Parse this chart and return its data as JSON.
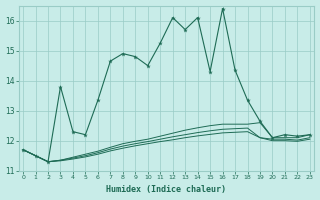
{
  "xlabel": "Humidex (Indice chaleur)",
  "x_values": [
    0,
    1,
    2,
    3,
    4,
    5,
    6,
    7,
    8,
    9,
    10,
    11,
    12,
    13,
    14,
    15,
    16,
    17,
    18,
    19,
    20,
    21,
    22,
    23
  ],
  "line1": [
    11.7,
    11.5,
    11.3,
    13.8,
    12.3,
    12.2,
    13.35,
    14.65,
    14.9,
    14.8,
    14.5,
    15.25,
    16.1,
    15.7,
    16.1,
    14.3,
    16.4,
    14.35,
    13.35,
    12.65,
    12.1,
    12.2,
    12.15,
    12.2
  ],
  "line2": [
    11.7,
    11.5,
    11.3,
    11.35,
    11.45,
    11.55,
    11.65,
    11.78,
    11.9,
    11.98,
    12.05,
    12.15,
    12.25,
    12.35,
    12.43,
    12.5,
    12.55,
    12.55,
    12.55,
    12.6,
    12.1,
    12.1,
    12.1,
    12.2
  ],
  "line3": [
    11.7,
    11.5,
    11.3,
    11.35,
    11.42,
    11.5,
    11.6,
    11.72,
    11.82,
    11.9,
    11.97,
    12.05,
    12.13,
    12.2,
    12.27,
    12.33,
    12.38,
    12.4,
    12.42,
    12.1,
    12.05,
    12.05,
    12.02,
    12.1
  ],
  "line4": [
    11.7,
    11.5,
    11.3,
    11.33,
    11.39,
    11.46,
    11.55,
    11.66,
    11.75,
    11.83,
    11.9,
    11.97,
    12.03,
    12.1,
    12.16,
    12.21,
    12.26,
    12.28,
    12.3,
    12.1,
    12.0,
    12.0,
    11.98,
    12.05
  ],
  "color": "#1e6b55",
  "bg_color": "#c8ece8",
  "grid_color": "#9accc6",
  "ylim": [
    11.0,
    16.5
  ],
  "yticks": [
    11,
    12,
    13,
    14,
    15,
    16
  ],
  "xlim": [
    0,
    23
  ]
}
